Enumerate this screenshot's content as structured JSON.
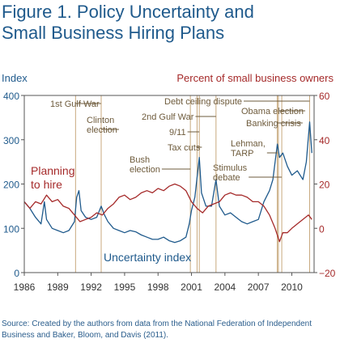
{
  "title_lines": [
    "Figure 1. Policy Uncertainty and",
    "Small Business Hiring Plans"
  ],
  "source": "Source: Created by the authors from data from the National Federation of Independent Business and Baker, Bloom, and Davis (2011).",
  "colors": {
    "title": "#1f5a8c",
    "uncertainty": "#1f5a8c",
    "hiring": "#a52a2a",
    "event_line": "#c8a97e",
    "annotation": "#6e5b3c",
    "axis": "#555555"
  },
  "chart_data": {
    "type": "line",
    "left_axis": {
      "label": "Index",
      "range": [
        0,
        400
      ],
      "ticks": [
        "0",
        "100",
        "200",
        "300",
        "400"
      ]
    },
    "right_axis": {
      "label": "Percent of small business owners",
      "range": [
        -20,
        60
      ],
      "ticks": [
        "−20",
        "0",
        "20",
        "40",
        "60"
      ]
    },
    "x_range": [
      1986,
      2012
    ],
    "x_ticks": [
      "1986",
      "1989",
      "1992",
      "1995",
      "1998",
      "2001",
      "2004",
      "2007",
      "2010"
    ],
    "series": [
      {
        "name": "Uncertainty index",
        "axis": "left",
        "points": [
          [
            1986.0,
            160
          ],
          [
            1986.5,
            145
          ],
          [
            1987.0,
            125
          ],
          [
            1987.5,
            110
          ],
          [
            1987.8,
            160
          ],
          [
            1988.0,
            120
          ],
          [
            1988.5,
            100
          ],
          [
            1989.0,
            95
          ],
          [
            1989.5,
            90
          ],
          [
            1990.0,
            95
          ],
          [
            1990.5,
            115
          ],
          [
            1990.7,
            170
          ],
          [
            1990.9,
            185
          ],
          [
            1991.1,
            140
          ],
          [
            1991.5,
            125
          ],
          [
            1992.0,
            120
          ],
          [
            1992.5,
            125
          ],
          [
            1992.9,
            150
          ],
          [
            1993.2,
            130
          ],
          [
            1993.5,
            115
          ],
          [
            1994.0,
            100
          ],
          [
            1994.5,
            95
          ],
          [
            1995.0,
            90
          ],
          [
            1995.5,
            95
          ],
          [
            1996.0,
            92
          ],
          [
            1996.5,
            85
          ],
          [
            1997.0,
            80
          ],
          [
            1997.5,
            75
          ],
          [
            1998.0,
            75
          ],
          [
            1998.5,
            80
          ],
          [
            1999.0,
            72
          ],
          [
            1999.5,
            68
          ],
          [
            2000.0,
            72
          ],
          [
            2000.5,
            80
          ],
          [
            2000.8,
            110
          ],
          [
            2001.0,
            140
          ],
          [
            2001.3,
            170
          ],
          [
            2001.7,
            260
          ],
          [
            2001.9,
            180
          ],
          [
            2002.3,
            150
          ],
          [
            2002.8,
            150
          ],
          [
            2003.2,
            210
          ],
          [
            2003.5,
            150
          ],
          [
            2004.0,
            130
          ],
          [
            2004.5,
            135
          ],
          [
            2005.0,
            125
          ],
          [
            2005.5,
            115
          ],
          [
            2006.0,
            110
          ],
          [
            2006.5,
            115
          ],
          [
            2007.0,
            120
          ],
          [
            2007.5,
            160
          ],
          [
            2008.0,
            185
          ],
          [
            2008.3,
            210
          ],
          [
            2008.7,
            290
          ],
          [
            2008.9,
            260
          ],
          [
            2009.2,
            270
          ],
          [
            2009.6,
            240
          ],
          [
            2010.0,
            220
          ],
          [
            2010.5,
            230
          ],
          [
            2011.0,
            210
          ],
          [
            2011.3,
            250
          ],
          [
            2011.6,
            340
          ],
          [
            2011.8,
            270
          ]
        ]
      },
      {
        "name": "Planning to hire",
        "axis": "right",
        "points": [
          [
            1986.0,
            12
          ],
          [
            1986.5,
            9
          ],
          [
            1987.0,
            12
          ],
          [
            1987.5,
            11
          ],
          [
            1988.0,
            15
          ],
          [
            1988.5,
            12
          ],
          [
            1989.0,
            13
          ],
          [
            1989.5,
            10
          ],
          [
            1990.0,
            9
          ],
          [
            1990.5,
            6
          ],
          [
            1991.0,
            3
          ],
          [
            1991.5,
            4
          ],
          [
            1992.0,
            5
          ],
          [
            1992.5,
            7
          ],
          [
            1993.0,
            6
          ],
          [
            1993.5,
            9
          ],
          [
            1994.0,
            11
          ],
          [
            1994.5,
            14
          ],
          [
            1995.0,
            15
          ],
          [
            1995.5,
            13
          ],
          [
            1996.0,
            14
          ],
          [
            1996.5,
            16
          ],
          [
            1997.0,
            17
          ],
          [
            1997.5,
            16
          ],
          [
            1998.0,
            18
          ],
          [
            1998.5,
            17
          ],
          [
            1999.0,
            19
          ],
          [
            1999.5,
            20
          ],
          [
            2000.0,
            19
          ],
          [
            2000.5,
            17
          ],
          [
            2001.0,
            12
          ],
          [
            2001.5,
            9
          ],
          [
            2002.0,
            7
          ],
          [
            2002.5,
            10
          ],
          [
            2003.0,
            11
          ],
          [
            2003.5,
            12
          ],
          [
            2004.0,
            15
          ],
          [
            2004.5,
            16
          ],
          [
            2005.0,
            15
          ],
          [
            2005.5,
            15
          ],
          [
            2006.0,
            14
          ],
          [
            2006.5,
            12
          ],
          [
            2007.0,
            12
          ],
          [
            2007.5,
            10
          ],
          [
            2008.0,
            6
          ],
          [
            2008.5,
            0
          ],
          [
            2008.9,
            -6
          ],
          [
            2009.2,
            -2
          ],
          [
            2009.6,
            -2
          ],
          [
            2010.0,
            0
          ],
          [
            2010.5,
            2
          ],
          [
            2011.0,
            4
          ],
          [
            2011.5,
            6
          ],
          [
            2011.8,
            4
          ]
        ]
      }
    ],
    "series_labels": [
      {
        "series": "Planning to hire",
        "lines": [
          "Planning",
          "to hire"
        ]
      },
      {
        "series": "Uncertainty index",
        "lines": [
          "Uncertainty index"
        ]
      }
    ],
    "events": [
      {
        "label": [
          "1st Gulf War"
        ],
        "x": 1990.6
      },
      {
        "label": [
          "Clinton",
          "election"
        ],
        "x": 1992.9
      },
      {
        "label": [
          "Bush",
          "election"
        ],
        "x": 2000.9
      },
      {
        "label": [
          "9/11"
        ],
        "x": 2001.7
      },
      {
        "label": [
          "Tax cuts"
        ],
        "x": 2001.5
      },
      {
        "label": [
          "2nd Gulf War"
        ],
        "x": 2003.2
      },
      {
        "label": [
          "Debt ceiling dispute"
        ],
        "x": 2011.6
      },
      {
        "label": [
          "Obama election"
        ],
        "x": 2008.8
      },
      {
        "label": [
          "Banking crisis"
        ],
        "x": 2008.7
      },
      {
        "label": [
          "Lehman,",
          "TARP"
        ],
        "x": 2008.7
      },
      {
        "label": [
          "Stimulus",
          "debate"
        ],
        "x": 2009.1
      }
    ],
    "grid": false
  }
}
